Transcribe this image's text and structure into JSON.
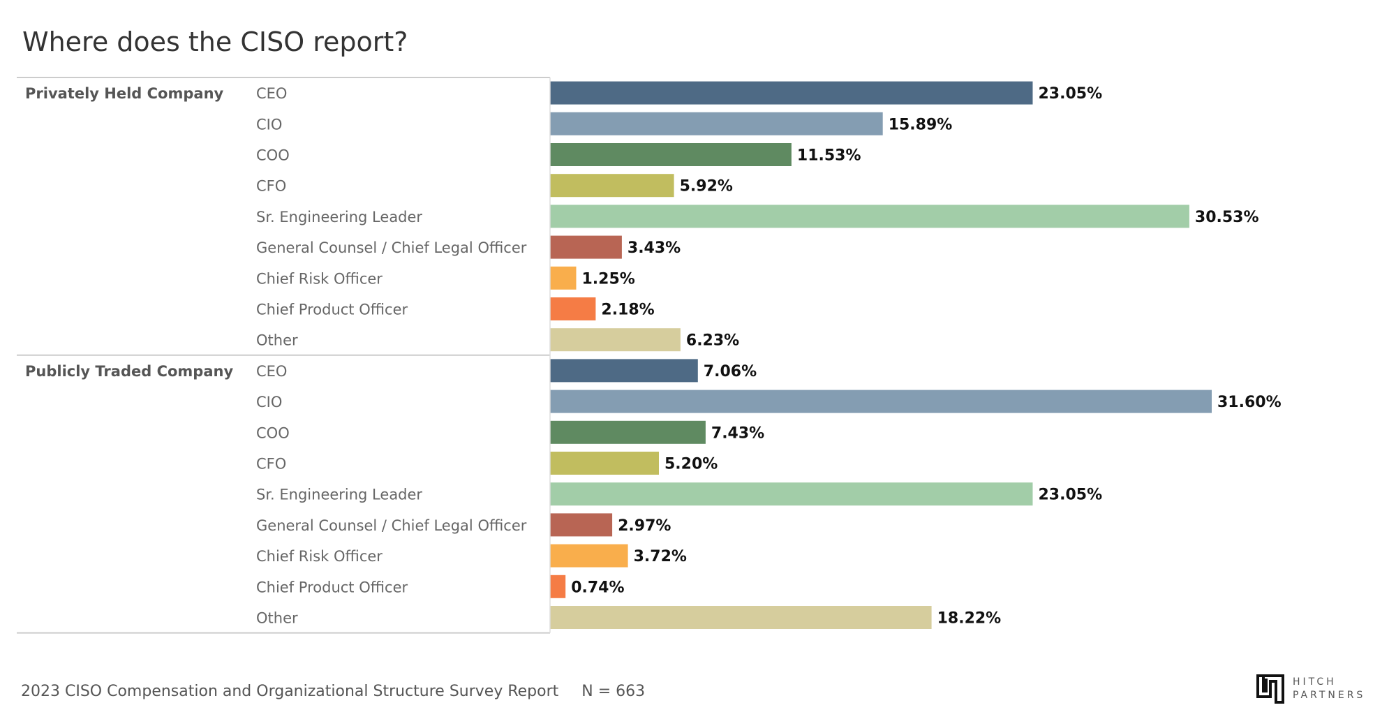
{
  "title": "Where does the CISO report?",
  "footer": {
    "report": "2023 CISO Compensation and Organizational Structure Survey Report",
    "n": "N = 663"
  },
  "logo": {
    "line1": "HITCH",
    "line2": "PARTNERS"
  },
  "chart_data": {
    "type": "bar",
    "orientation": "horizontal",
    "title": "Where does the CISO report?",
    "unit": "%",
    "xlim": [
      0,
      35
    ],
    "grid": false,
    "categories": [
      "CEO",
      "CIO",
      "COO",
      "CFO",
      "Sr. Engineering Leader",
      "General Counsel / Chief Legal Officer",
      "Chief Risk Officer",
      "Chief Product Officer",
      "Other"
    ],
    "colors": [
      "#4e6a85",
      "#849db2",
      "#5f8a61",
      "#c1bd5f",
      "#a2cda8",
      "#b86554",
      "#f9ae4c",
      "#f57c45",
      "#d6cd9d"
    ],
    "groups": [
      {
        "name": "Privately Held Company",
        "values": [
          23.05,
          15.89,
          11.53,
          5.92,
          30.53,
          3.43,
          1.25,
          2.18,
          6.23
        ],
        "labels": [
          "23.05%",
          "15.89%",
          "11.53%",
          "5.92%",
          "30.53%",
          "3.43%",
          "1.25%",
          "2.18%",
          "6.23%"
        ]
      },
      {
        "name": "Publicly Traded Company",
        "values": [
          7.06,
          31.6,
          7.43,
          5.2,
          23.05,
          2.97,
          3.72,
          0.74,
          18.22
        ],
        "labels": [
          "7.06%",
          "31.60%",
          "7.43%",
          "5.20%",
          "23.05%",
          "2.97%",
          "3.72%",
          "0.74%",
          "18.22%"
        ]
      }
    ]
  }
}
